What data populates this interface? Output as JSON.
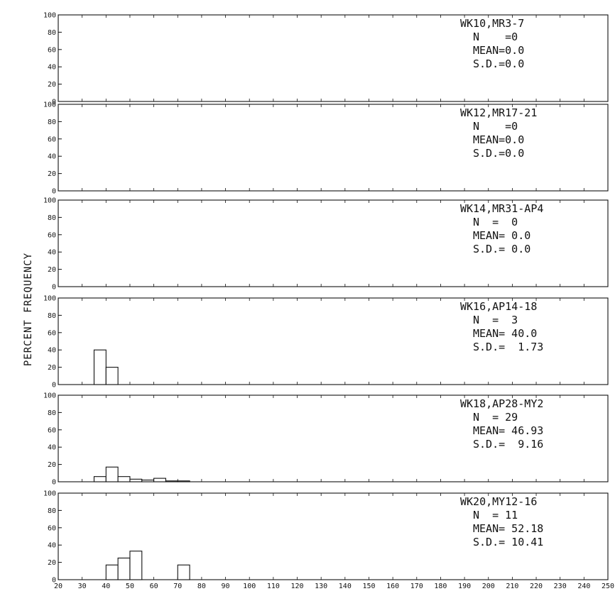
{
  "chart_data": {
    "type": "bar",
    "ylabel": "PERCENT FREQUENCY",
    "xlabel": "",
    "bin_width": 5,
    "xlim": [
      20,
      250
    ],
    "ylim": [
      0,
      100
    ],
    "x_ticks": [
      "20",
      "30",
      "40",
      "50",
      "60",
      "70",
      "80",
      "90",
      "100",
      "110",
      "120",
      "130",
      "140",
      "150",
      "160",
      "170",
      "180",
      "190",
      "200",
      "210",
      "220",
      "230",
      "240",
      "250"
    ],
    "y_ticks": [
      "0",
      "20",
      "40",
      "60",
      "80",
      "100"
    ],
    "panels": [
      {
        "title": "WK10,MR3-7",
        "stats": [
          "N    =0",
          "MEAN=0.0",
          "S.D.=0.0"
        ],
        "bins": []
      },
      {
        "title": "WK12,MR17-21",
        "stats": [
          "N    =0",
          "MEAN=0.0",
          "S.D.=0.0"
        ],
        "bins": []
      },
      {
        "title": "WK14,MR31-AP4",
        "stats": [
          "N  =  0",
          "MEAN= 0.0",
          "S.D.= 0.0"
        ],
        "bins": []
      },
      {
        "title": "WK16,AP14-18",
        "stats": [
          "N  =  3",
          "MEAN= 40.0",
          "S.D.=  1.73"
        ],
        "bins": [
          {
            "x0": 35,
            "x1": 40,
            "value": 40
          },
          {
            "x0": 40,
            "x1": 45,
            "value": 20
          }
        ]
      },
      {
        "title": "WK18,AP28-MY2",
        "stats": [
          "N  = 29",
          "MEAN= 46.93",
          "S.D.=  9.16"
        ],
        "bins": [
          {
            "x0": 35,
            "x1": 40,
            "value": 6
          },
          {
            "x0": 40,
            "x1": 45,
            "value": 17
          },
          {
            "x0": 45,
            "x1": 50,
            "value": 6
          },
          {
            "x0": 50,
            "x1": 55,
            "value": 3
          },
          {
            "x0": 55,
            "x1": 60,
            "value": 2
          },
          {
            "x0": 60,
            "x1": 65,
            "value": 4
          },
          {
            "x0": 65,
            "x1": 70,
            "value": 1
          },
          {
            "x0": 70,
            "x1": 75,
            "value": 1
          }
        ]
      },
      {
        "title": "WK20,MY12-16",
        "stats": [
          "N  = 11",
          "MEAN= 52.18",
          "S.D.= 10.41"
        ],
        "bins": [
          {
            "x0": 40,
            "x1": 45,
            "value": 17
          },
          {
            "x0": 45,
            "x1": 50,
            "value": 25
          },
          {
            "x0": 50,
            "x1": 55,
            "value": 33
          },
          {
            "x0": 70,
            "x1": 75,
            "value": 17
          }
        ]
      }
    ]
  }
}
